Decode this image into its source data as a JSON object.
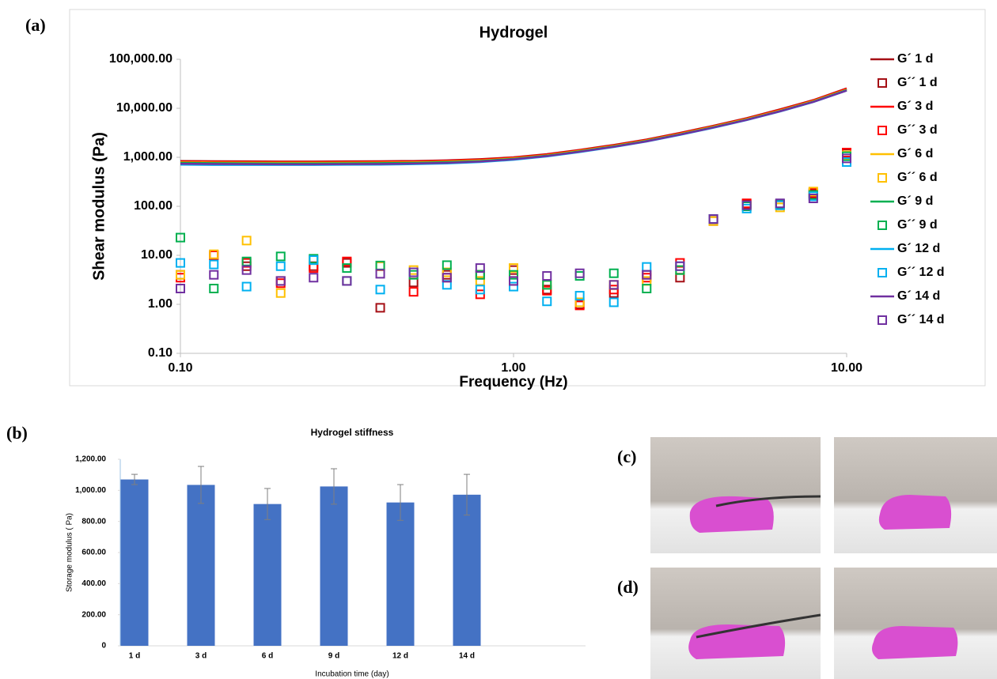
{
  "panel_labels": [
    "(a)",
    "(b)",
    "(c)",
    "(d)"
  ],
  "chart_data": [
    {
      "type": "line",
      "title": "Hydrogel",
      "xlabel": "Frequency (Hz)",
      "ylabel": "Shear modulus (Pa)",
      "xlog": true,
      "ylog": true,
      "grid": false,
      "legend": "right",
      "xlim": [
        0.1,
        10
      ],
      "ylim": [
        0.1,
        100000
      ],
      "xticks": [
        {
          "value": 0.1,
          "label": "0.10"
        },
        {
          "value": 1,
          "label": "1.00"
        },
        {
          "value": 10,
          "label": "10.00"
        }
      ],
      "yticks": [
        {
          "value": 0.1,
          "label": "0.10"
        },
        {
          "value": 1,
          "label": "1.00"
        },
        {
          "value": 10,
          "label": "10.00"
        },
        {
          "value": 100,
          "label": "100.00"
        },
        {
          "value": 1000,
          "label": "1,000.00"
        },
        {
          "value": 10000,
          "label": "10,000.00"
        },
        {
          "value": 100000,
          "label": "100,000.00"
        }
      ],
      "x": [
        0.1,
        0.126,
        0.158,
        0.2,
        0.251,
        0.316,
        0.398,
        0.501,
        0.631,
        0.794,
        1,
        1.26,
        1.58,
        2,
        2.51,
        3.16,
        3.98,
        5.01,
        6.31,
        7.94,
        10
      ],
      "series": [
        {
          "name": "G´ 1 d",
          "style": "line",
          "color": "#a50f15",
          "values": [
            840,
            830,
            825,
            820,
            820,
            825,
            830,
            840,
            865,
            915,
            1000,
            1160,
            1420,
            1790,
            2310,
            3150,
            4400,
            6300,
            9500,
            14700,
            25500
          ]
        },
        {
          "name": "G´´ 1 d",
          "style": "square",
          "color": "#a50f15",
          "values": [
            4,
            10,
            6,
            3,
            6,
            7,
            0.85,
            2.8,
            4,
            4,
            5,
            2,
            1,
            1.7,
            4,
            3.5,
            50,
            110,
            110,
            180,
            1200
          ]
        },
        {
          "name": "G´ 3 d",
          "style": "line",
          "color": "#ff0000",
          "values": [
            820,
            810,
            805,
            800,
            800,
            805,
            810,
            820,
            845,
            895,
            980,
            1140,
            1390,
            1750,
            2260,
            3090,
            4300,
            6150,
            9300,
            14400,
            25000
          ]
        },
        {
          "name": "G´´ 3 d",
          "style": "square",
          "color": "#ff0000",
          "values": [
            3.5,
            10,
            7,
            2.7,
            5.5,
            7.5,
            6,
            1.8,
            3.5,
            1.6,
            3,
            1.9,
            0.95,
            2,
            3.5,
            7,
            55,
            115,
            105,
            190,
            1250
          ]
        },
        {
          "name": "G´ 6 d",
          "style": "line",
          "color": "#ffc000",
          "values": [
            790,
            780,
            775,
            770,
            770,
            775,
            780,
            790,
            815,
            860,
            950,
            1100,
            1350,
            1700,
            2200,
            3000,
            4200,
            6000,
            9000,
            14000,
            24000
          ]
        },
        {
          "name": "G´´ 6 d",
          "style": "square",
          "color": "#ffc000",
          "values": [
            4,
            10.5,
            20,
            1.7,
            8,
            3,
            6,
            5,
            4.5,
            3,
            5.5,
            2.5,
            1.1,
            2.5,
            3,
            5,
            50,
            100,
            95,
            200,
            1100
          ]
        },
        {
          "name": "G´ 9 d",
          "style": "line",
          "color": "#00b050",
          "values": [
            770,
            760,
            755,
            750,
            750,
            755,
            760,
            770,
            795,
            840,
            930,
            1080,
            1320,
            1670,
            2160,
            2940,
            4100,
            5880,
            8800,
            13700,
            23500
          ]
        },
        {
          "name": "G´´ 9 d",
          "style": "square",
          "color": "#00b050",
          "values": [
            23,
            2.1,
            7.5,
            9.5,
            8.5,
            5.5,
            6.2,
            4,
            6.3,
            4,
            4,
            2.5,
            3.8,
            4.3,
            2.1,
            5,
            55,
            100,
            110,
            170,
            1050
          ]
        },
        {
          "name": "G´ 12 d",
          "style": "line",
          "color": "#00b0f0",
          "values": [
            710,
            700,
            700,
            700,
            700,
            705,
            710,
            725,
            750,
            800,
            890,
            1040,
            1280,
            1620,
            2100,
            2860,
            4000,
            5750,
            8600,
            13400,
            23000
          ]
        },
        {
          "name": "G´´ 12 d",
          "style": "square",
          "color": "#00b0f0",
          "values": [
            7,
            6.5,
            2.3,
            6,
            8,
            3,
            2,
            4.5,
            2.5,
            2,
            2.3,
            1.15,
            1.5,
            1.1,
            5.8,
            6,
            55,
            90,
            105,
            160,
            800
          ]
        },
        {
          "name": "G´ 14 d",
          "style": "line",
          "color": "#7030a0",
          "values": [
            740,
            730,
            725,
            720,
            720,
            725,
            730,
            745,
            770,
            820,
            910,
            1060,
            1300,
            1640,
            2120,
            2900,
            4050,
            5800,
            8700,
            13500,
            23000
          ]
        },
        {
          "name": "G´´ 14 d",
          "style": "square",
          "color": "#7030a0",
          "values": [
            2.1,
            4,
            5,
            3,
            3.5,
            3,
            4.2,
            4.5,
            3.5,
            5.5,
            3,
            3.8,
            4.3,
            2.5,
            4,
            6,
            55,
            105,
            115,
            145,
            950
          ]
        }
      ]
    },
    {
      "type": "bar",
      "title": "Hydrogel stiffness",
      "xlabel": "Incubation time (day)",
      "ylabel": "Storage modulus ( Pa)",
      "grid": false,
      "color": "#4472c4",
      "error_color": "#7f7f7f",
      "categories": [
        "1 d",
        "3 d",
        "6 d",
        "9 d",
        "12 d",
        "14 d"
      ],
      "values": [
        1070,
        1035,
        912,
        1025,
        922,
        972
      ],
      "errors": [
        33,
        119,
        100,
        114,
        115,
        131
      ],
      "ylim": [
        0,
        1200
      ],
      "yticks": [
        0,
        {
          "value": 200,
          "label": "200.00"
        },
        {
          "value": 400,
          "label": "400.00"
        },
        {
          "value": 600,
          "label": "600.00"
        },
        {
          "value": 800,
          "label": "800.00"
        },
        {
          "value": 1000,
          "label": "1,000.00"
        },
        {
          "value": 1200,
          "label": "1,200.00"
        }
      ]
    }
  ]
}
